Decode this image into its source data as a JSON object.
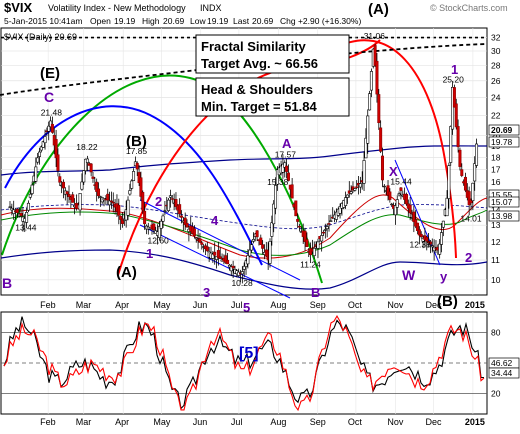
{
  "header": {
    "symbol": "$VIX",
    "name": "Volatility Index - New Methodology",
    "exchange": "INDX",
    "date_time": "5-Jan-2015 10:41am",
    "open_label": "Open",
    "open": "19.19",
    "high_label": "High",
    "high": "20.69",
    "low_label": "Low",
    "low": "19.19",
    "last_label": "Last",
    "last": "20.69",
    "change": "Chg +2.90 (+16.30%)",
    "watermark": "© StockCharts.com"
  },
  "legend": "$VIX (Daily) 20.69",
  "annotations": {
    "fractal_line1": "Fractal Similarity",
    "fractal_line2": "Target Avg. ~ 66.56",
    "hs_line1": "Head & Shoulders",
    "hs_line2": "Min. Target = 51.84"
  },
  "colors": {
    "price": "#000000",
    "bollinger": "#00008b",
    "ma_red": "#cc0000",
    "ma_green": "#008800",
    "cycle_red": "#ff0000",
    "cycle_green": "#00aa00",
    "cycle_blue": "#0000ff",
    "wave_label": "#6600aa",
    "label_box": "#000000",
    "osc_red": "#ff0000"
  },
  "chart_data": [
    {
      "type": "candlestick",
      "title": "$VIX (Daily)",
      "ylim": [
        9.3,
        33.5
      ],
      "y_ticks": [
        10,
        11,
        12,
        13,
        14,
        15,
        16,
        17,
        18,
        19,
        20,
        22,
        24,
        26,
        28,
        30,
        32
      ],
      "x_ticks": [
        "Feb",
        "Mar",
        "Apr",
        "May",
        "Jun",
        "Jul",
        "Aug",
        "Sep",
        "Oct",
        "Nov",
        "Dec",
        "2015"
      ],
      "right_labels": [
        "20.69",
        "19.78",
        "15.55",
        "15.07",
        "13.98"
      ],
      "price_path": [
        [
          "Jan 2",
          14.2
        ],
        [
          "Jan 14",
          13.4
        ],
        [
          "Jan 24",
          18.1
        ],
        [
          "Feb 3",
          21.48
        ],
        [
          "Feb 10",
          16.0
        ],
        [
          "Feb 24",
          14.0
        ],
        [
          "Mar 3",
          18.22
        ],
        [
          "Mar 12",
          15.0
        ],
        [
          "Mar 24",
          14.5
        ],
        [
          "Apr 1",
          13.0
        ],
        [
          "Apr 11",
          17.85
        ],
        [
          "Apr 18",
          13.0
        ],
        [
          "Apr 28",
          12.6
        ],
        [
          "May 8",
          15.0
        ],
        [
          "May 20",
          13.0
        ],
        [
          "Jun 6",
          11.5
        ],
        [
          "Jun 18",
          11.0
        ],
        [
          "Jul 3",
          10.28
        ],
        [
          "Jul 14",
          12.5
        ],
        [
          "Jul 24",
          11.0
        ],
        [
          "Jul 31",
          16.95
        ],
        [
          "Aug 6",
          17.57
        ],
        [
          "Aug 15",
          13.5
        ],
        [
          "Aug 26",
          11.24
        ],
        [
          "Sep 5",
          12.5
        ],
        [
          "Sep 24",
          15.0
        ],
        [
          "Oct 6",
          16.0
        ],
        [
          "Oct 15",
          31.06
        ],
        [
          "Oct 22",
          16.0
        ],
        [
          "Oct 31",
          14.0
        ],
        [
          "Nov 5",
          15.44
        ],
        [
          "Nov 20",
          12.38
        ],
        [
          "Dec 5",
          11.5
        ],
        [
          "Dec 12",
          15.0
        ],
        [
          "Dec 16",
          25.2
        ],
        [
          "Dec 22",
          17.0
        ],
        [
          "Dec 30",
          14.01
        ],
        [
          "Jan 5",
          20.69
        ]
      ],
      "labeled_values": [
        "21.48",
        "18.22",
        "17.85",
        "17.57",
        "15.38",
        "13.44",
        "12.60",
        "11.24",
        "10.28",
        "31.06",
        "15.44",
        "12.38",
        "25.20",
        "14.01"
      ],
      "wave_labels": [
        "B",
        "(E)",
        "C",
        "(B)",
        "(A)",
        "1",
        "2",
        "3",
        "4",
        "5",
        "A",
        "B",
        "(A)",
        "(B)",
        "(C)",
        "X",
        "W",
        "1",
        "2",
        "y"
      ],
      "reference_line": 32
    },
    {
      "type": "line",
      "title": "Stochastic oscillator",
      "ylim": [
        0,
        100
      ],
      "y_ticks": [
        20,
        50,
        80
      ],
      "right_labels": [
        "46.62",
        "34.44"
      ],
      "overlay_label": "[5]",
      "x_ticks": [
        "Feb",
        "Mar",
        "Apr",
        "May",
        "Jun",
        "Jul",
        "Aug",
        "Sep",
        "Oct",
        "Nov",
        "Dec",
        "2015"
      ]
    }
  ]
}
